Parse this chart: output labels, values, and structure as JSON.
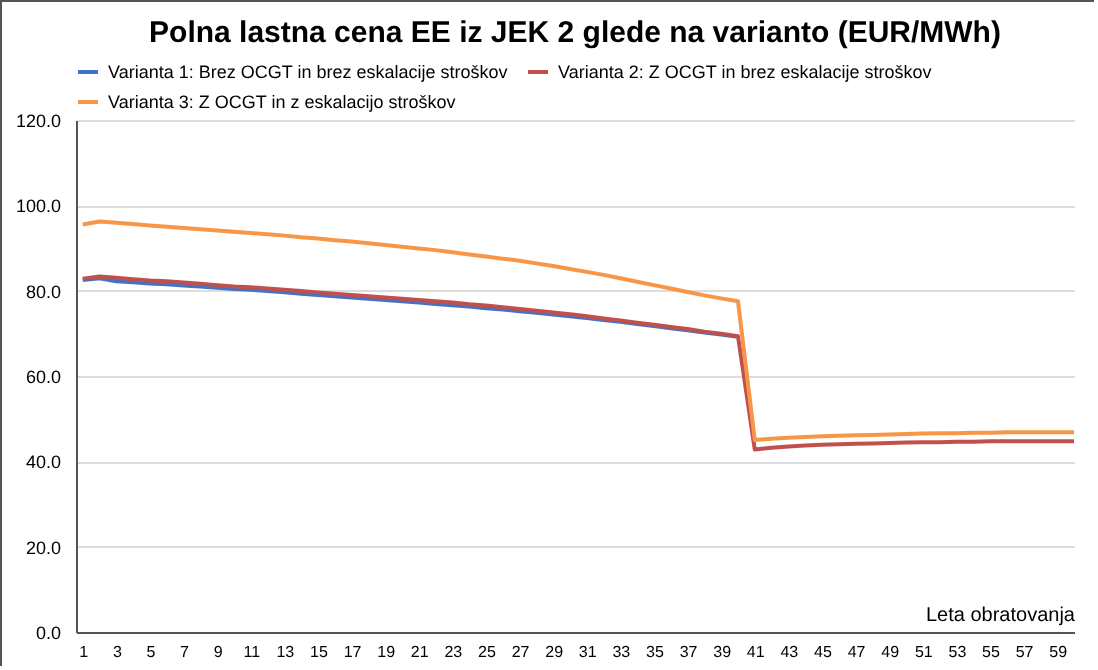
{
  "chart_data": {
    "type": "line",
    "title": "Polna lastna cena EE iz JEK 2 glede na varianto (EUR/MWh)",
    "xlabel": "Leta obratovanja",
    "x": [
      1,
      2,
      3,
      4,
      5,
      6,
      7,
      8,
      9,
      10,
      11,
      12,
      13,
      14,
      15,
      16,
      17,
      18,
      19,
      20,
      21,
      22,
      23,
      24,
      25,
      26,
      27,
      28,
      29,
      30,
      31,
      32,
      33,
      34,
      35,
      36,
      37,
      38,
      39,
      40,
      41,
      42,
      43,
      44,
      45,
      46,
      47,
      48,
      49,
      50,
      51,
      52,
      53,
      54,
      55,
      56,
      57,
      58,
      59,
      60
    ],
    "xlim": [
      0.6,
      60
    ],
    "xticks": [
      1,
      3,
      5,
      7,
      9,
      11,
      13,
      15,
      17,
      19,
      21,
      23,
      25,
      27,
      29,
      31,
      33,
      35,
      37,
      39,
      41,
      43,
      45,
      47,
      49,
      51,
      53,
      55,
      57,
      59
    ],
    "series": [
      {
        "name": "Varianta 1: Brez OCGT in brez eskalacije stroškov",
        "color": "#4472c4",
        "values": [
          82.5,
          82.9,
          82.2,
          82.0,
          81.7,
          81.5,
          81.2,
          81.0,
          80.7,
          80.4,
          80.2,
          79.9,
          79.6,
          79.3,
          79.0,
          78.7,
          78.4,
          78.1,
          77.8,
          77.5,
          77.2,
          76.9,
          76.6,
          76.3,
          75.9,
          75.6,
          75.2,
          74.8,
          74.4,
          74.0,
          73.6,
          73.1,
          72.7,
          72.2,
          71.7,
          71.2,
          70.7,
          70.2,
          69.7,
          69.2,
          null,
          null,
          null,
          null,
          null,
          null,
          null,
          null,
          null,
          null,
          null,
          null,
          null,
          null,
          null,
          null,
          null,
          null,
          null,
          null
        ]
      },
      {
        "name": "Varianta 2: Z OCGT in brez eskalacije stroškov",
        "color": "#c0504d",
        "values": [
          82.8,
          83.3,
          83.0,
          82.7,
          82.4,
          82.2,
          81.9,
          81.6,
          81.3,
          81.0,
          80.8,
          80.5,
          80.2,
          79.9,
          79.6,
          79.3,
          79.0,
          78.7,
          78.4,
          78.1,
          77.8,
          77.5,
          77.2,
          76.8,
          76.5,
          76.1,
          75.7,
          75.3,
          74.9,
          74.5,
          74.0,
          73.5,
          73.0,
          72.5,
          72.0,
          71.5,
          71.0,
          70.4,
          69.9,
          69.3,
          42.8,
          43.2,
          43.5,
          43.7,
          43.9,
          44.0,
          44.1,
          44.2,
          44.3,
          44.4,
          44.5,
          44.5,
          44.6,
          44.6,
          44.7,
          44.7,
          44.7,
          44.7,
          44.7,
          44.7
        ]
      },
      {
        "name": "Varianta 3: Z OCGT in z eskalacijo stroškov",
        "color": "#f79646",
        "values": [
          95.5,
          96.2,
          95.9,
          95.6,
          95.3,
          95.0,
          94.7,
          94.4,
          94.1,
          93.8,
          93.5,
          93.2,
          92.9,
          92.5,
          92.2,
          91.8,
          91.5,
          91.1,
          90.7,
          90.3,
          89.9,
          89.5,
          89.0,
          88.5,
          88.0,
          87.5,
          87.0,
          86.4,
          85.8,
          85.1,
          84.4,
          83.7,
          82.9,
          82.1,
          81.3,
          80.5,
          79.7,
          78.9,
          78.2,
          77.5,
          45.0,
          45.3,
          45.5,
          45.7,
          45.9,
          46.0,
          46.1,
          46.2,
          46.3,
          46.4,
          46.5,
          46.6,
          46.6,
          46.7,
          46.7,
          46.8,
          46.8,
          46.8,
          46.8,
          46.8
        ]
      }
    ],
    "ylim": [
      0,
      120
    ],
    "yticks": [
      {
        "value": 0,
        "label": "0.0"
      },
      {
        "value": 20,
        "label": "20.0"
      },
      {
        "value": 40,
        "label": "40.0"
      },
      {
        "value": 60,
        "label": "60.0"
      },
      {
        "value": 80,
        "label": "80.0"
      },
      {
        "value": 100,
        "label": "100.0"
      },
      {
        "value": 120,
        "label": "120.0"
      }
    ],
    "grid": "y",
    "legend": "top",
    "marker": "none",
    "line_style": "solid"
  }
}
